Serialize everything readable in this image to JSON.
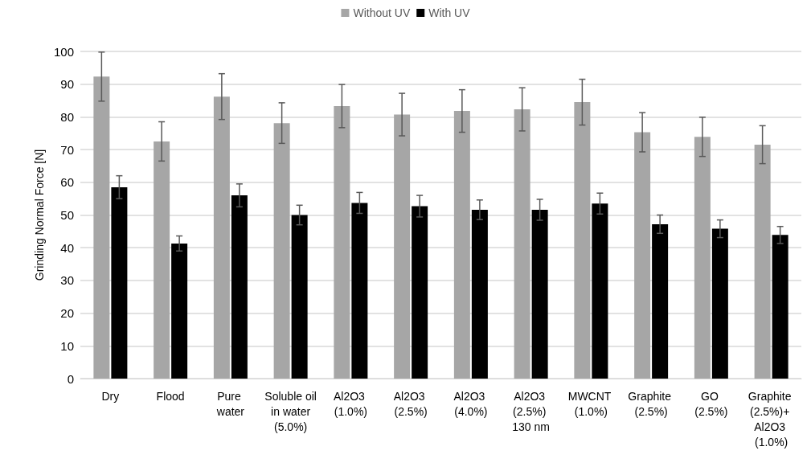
{
  "chart_data": {
    "type": "bar",
    "ylabel": "Grinding Normal Force [N]",
    "categories": [
      "Dry",
      "Flood",
      "Pure water",
      "Soluble oil in water (5.0%)",
      "Al2O3 (1.0%)",
      "Al2O3 (2.5%)",
      "Al2O3 (4.0%)",
      "Al2O3 (2.5%) 130 nm",
      "MWCNT (1.0%)",
      "Graphite (2.5%)",
      "GO (2.5%)",
      "Graphite (2.5%)+ Al2O3 (1.0%)"
    ],
    "series": [
      {
        "name": "Without UV",
        "color": "#a6a6a6",
        "values": [
          92.3,
          72.5,
          86.2,
          78.1,
          83.3,
          80.7,
          81.8,
          82.3,
          84.5,
          75.3,
          73.9,
          71.5
        ],
        "errors": [
          7.5,
          6,
          7,
          6.2,
          6.6,
          6.5,
          6.5,
          6.6,
          7,
          6,
          6,
          5.8
        ]
      },
      {
        "name": "With UV",
        "color": "#000000",
        "values": [
          58.5,
          41.3,
          56,
          50,
          53.7,
          52.7,
          51.6,
          51.6,
          53.5,
          47.2,
          45.8,
          43.9
        ],
        "errors": [
          3.5,
          2.3,
          3.5,
          3,
          3.2,
          3.3,
          3,
          3.2,
          3.2,
          2.8,
          2.7,
          2.6
        ]
      }
    ],
    "ylim": [
      0,
      100
    ],
    "yticks": [
      0,
      10,
      20,
      30,
      40,
      50,
      60,
      70,
      80,
      90,
      100
    ],
    "grid": "y",
    "legend": "top"
  }
}
